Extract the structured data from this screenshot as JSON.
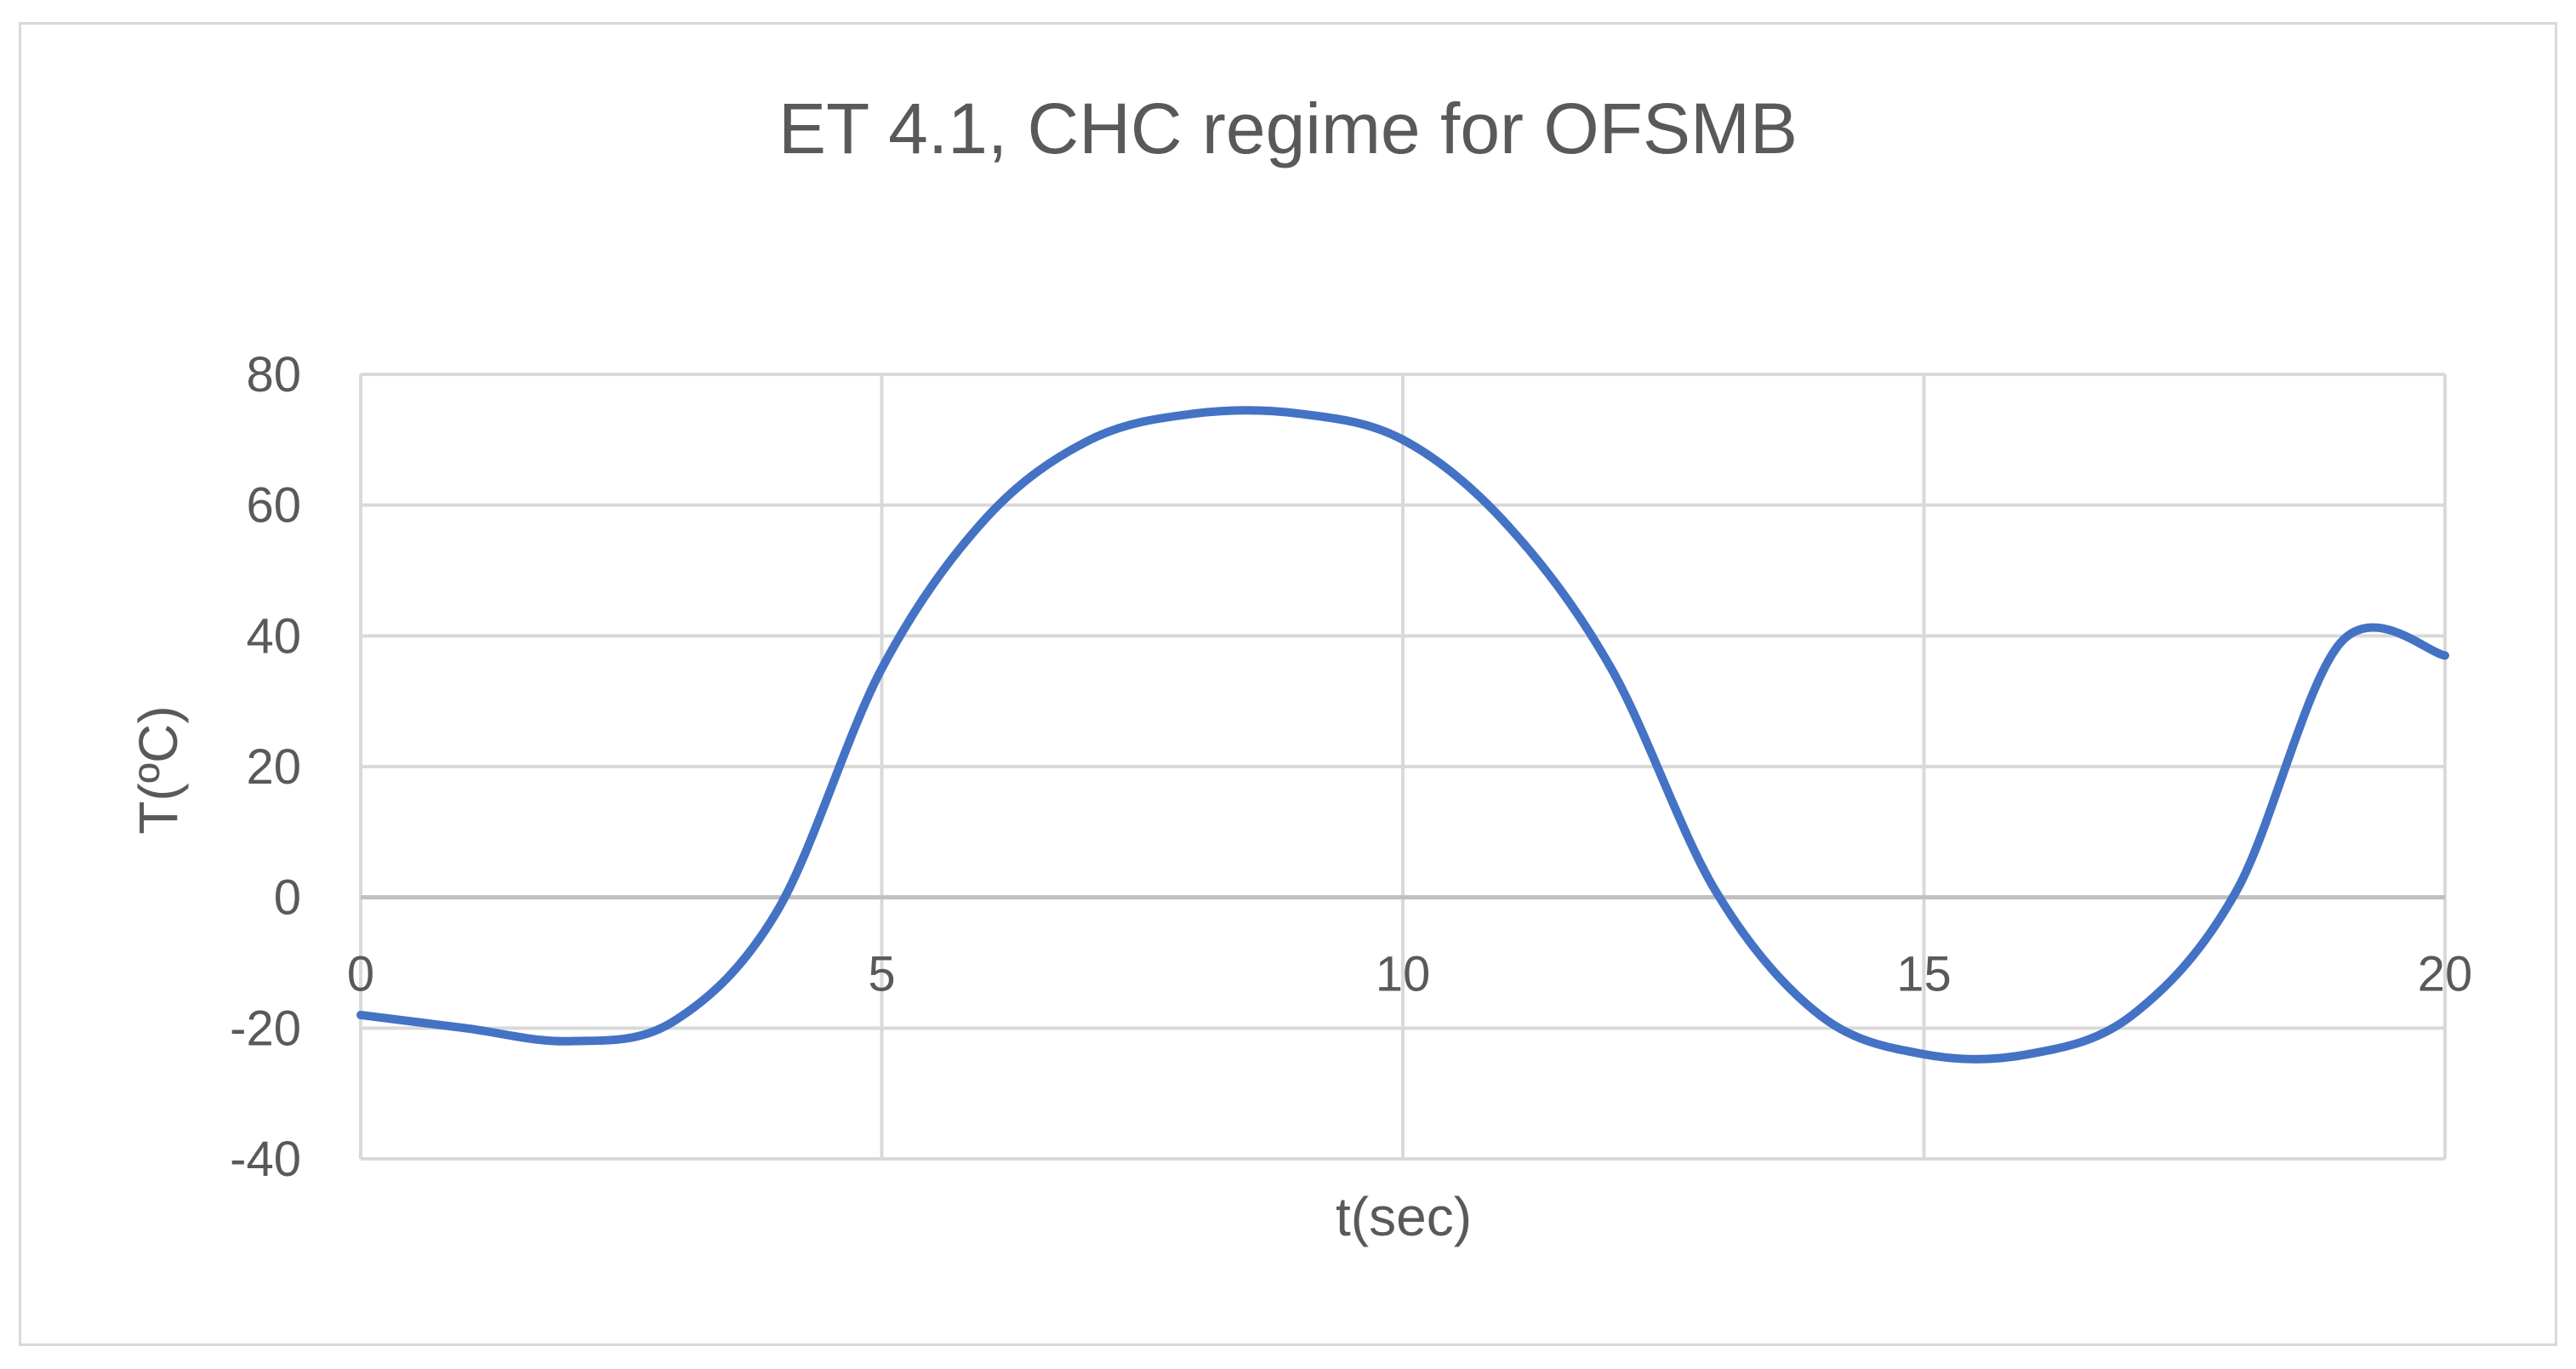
{
  "chart_data": {
    "type": "line",
    "title": "ET 4.1, CHC regime for OFSMB",
    "xlabel": "t(sec)",
    "ylabel": "T(ºC)",
    "xlim": [
      0,
      20
    ],
    "ylim": [
      -40,
      80
    ],
    "x_ticks": [
      0,
      5,
      10,
      15,
      20
    ],
    "y_ticks": [
      -40,
      -20,
      0,
      20,
      40,
      60,
      80
    ],
    "x_tick_labels": [
      "0",
      "5",
      "10",
      "15",
      "20"
    ],
    "y_tick_labels": [
      "-40",
      "-20",
      "0",
      "20",
      "40",
      "60",
      "80"
    ],
    "grid": true,
    "legend": "none",
    "series": [
      {
        "color": "#4472c4",
        "smooth": true,
        "x": [
          0,
          1,
          2,
          3,
          4,
          5,
          6,
          7,
          8,
          9,
          10,
          11,
          12,
          13,
          14,
          15,
          16,
          17,
          18,
          19,
          20
        ],
        "y": [
          -18,
          -20,
          -22,
          -19,
          -2,
          35,
          58,
          70,
          74,
          74,
          70,
          57,
          35,
          1,
          -18,
          -24,
          -24,
          -18,
          1,
          39,
          37
        ]
      }
    ]
  },
  "colors": {
    "grid": "#d9d9d9",
    "zero_axis": "#bfbfbf",
    "text": "#595959",
    "border": "#d9d9d9"
  }
}
